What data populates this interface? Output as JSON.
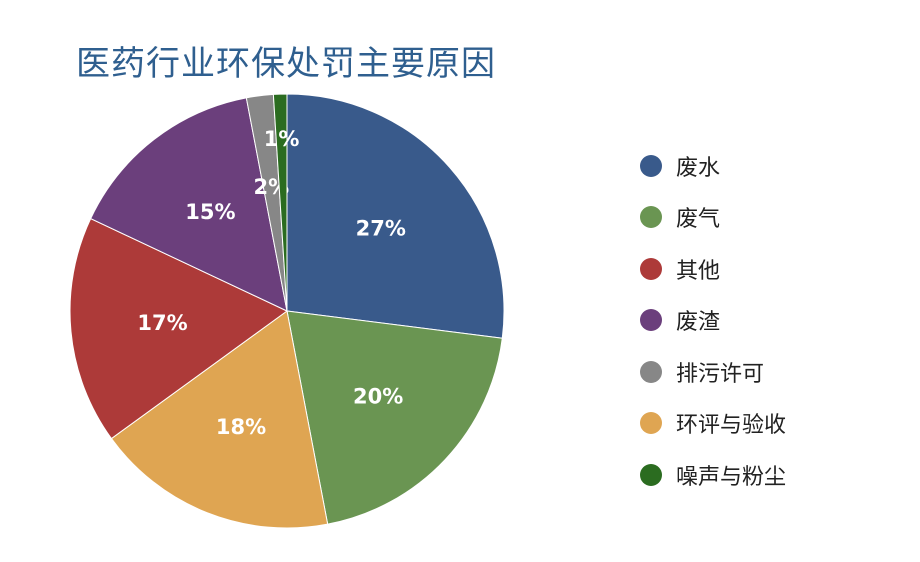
{
  "chart_data": {
    "type": "pie",
    "title": "医药行业环保处罚主要原因",
    "categories": [
      "废水",
      "废气",
      "其他",
      "废渣",
      "排污许可",
      "环评与验收",
      "噪声与粉尘"
    ],
    "values": [
      27,
      20,
      17,
      15,
      2,
      18,
      1
    ],
    "value_labels": [
      "27%",
      "20%",
      "17%",
      "15%",
      "2%",
      "18%",
      "1%"
    ],
    "colors": [
      "#395a8b",
      "#6a9552",
      "#ad3a39",
      "#6b3f7c",
      "#878787",
      "#dfa552",
      "#2b6c20"
    ],
    "slice_order": [
      0,
      1,
      5,
      2,
      3,
      4,
      6
    ],
    "legend": {
      "position": "right",
      "items": [
        {
          "label": "废水",
          "color": "#395a8b"
        },
        {
          "label": "废气",
          "color": "#6a9552"
        },
        {
          "label": "其他",
          "color": "#ad3a39"
        },
        {
          "label": "废渣",
          "color": "#6b3f7c"
        },
        {
          "label": "排污许可",
          "color": "#878787"
        },
        {
          "label": "环评与验收",
          "color": "#dfa552"
        },
        {
          "label": "噪声与粉尘",
          "color": "#2b6c20"
        }
      ]
    }
  }
}
